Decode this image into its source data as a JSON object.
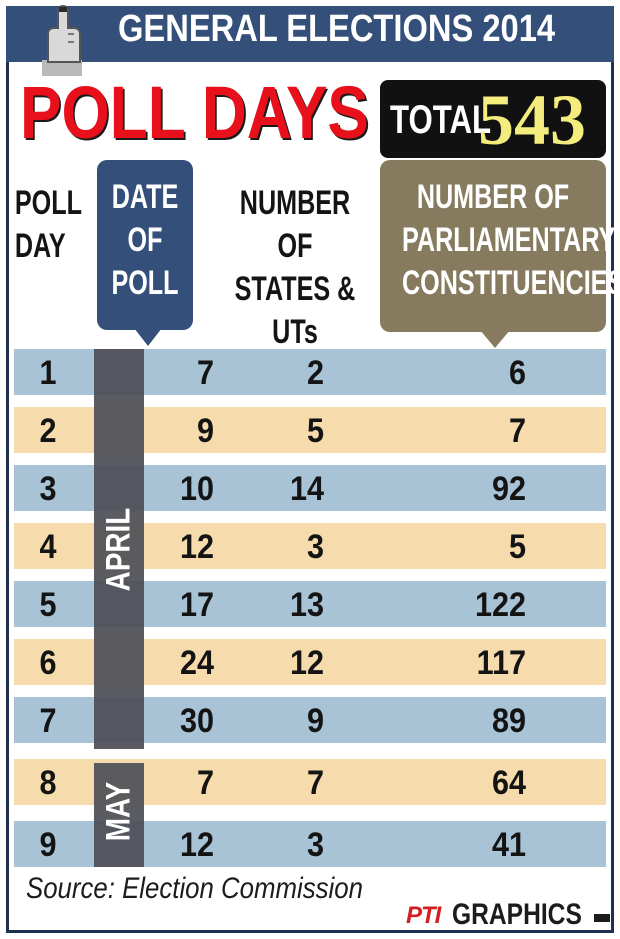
{
  "header": {
    "title": "GENERAL ELECTIONS 2014",
    "banner_color": "#34507a"
  },
  "headline": "POLL DAYS",
  "total": {
    "label": "TOTAL",
    "value": "543"
  },
  "columns": {
    "poll_day": "POLL\nDAY",
    "date": "DATE\nOF\nPOLL",
    "states": "NUMBER OF\nSTATES &\nUTs",
    "constituencies": "NUMBER OF\nPARLIAMENTARY\nCONSTITUENCIES"
  },
  "months": {
    "april": "APRIL",
    "may": "MAY"
  },
  "rows": [
    {
      "day": "1",
      "date": "7",
      "states": "2",
      "constituencies": "6"
    },
    {
      "day": "2",
      "date": "9",
      "states": "5",
      "constituencies": "7"
    },
    {
      "day": "3",
      "date": "10",
      "states": "14",
      "constituencies": "92"
    },
    {
      "day": "4",
      "date": "12",
      "states": "3",
      "constituencies": "5"
    },
    {
      "day": "5",
      "date": "17",
      "states": "13",
      "constituencies": "122"
    },
    {
      "day": "6",
      "date": "24",
      "states": "12",
      "constituencies": "117"
    },
    {
      "day": "7",
      "date": "30",
      "states": "9",
      "constituencies": "89"
    },
    {
      "day": "8",
      "date": "7",
      "states": "7",
      "constituencies": "64"
    },
    {
      "day": "9",
      "date": "12",
      "states": "3",
      "constituencies": "41"
    }
  ],
  "footer": {
    "source": "Source: Election Commission",
    "logo_text": "PTI",
    "graphics": "GRAPHICS"
  },
  "colors": {
    "row_blue": "#a8c2d6",
    "row_tan": "#f6dcac",
    "headline_red": "#e8101a",
    "total_yellow": "#f4ec7c"
  },
  "icons": {
    "hand": "voting-hand-icon"
  }
}
